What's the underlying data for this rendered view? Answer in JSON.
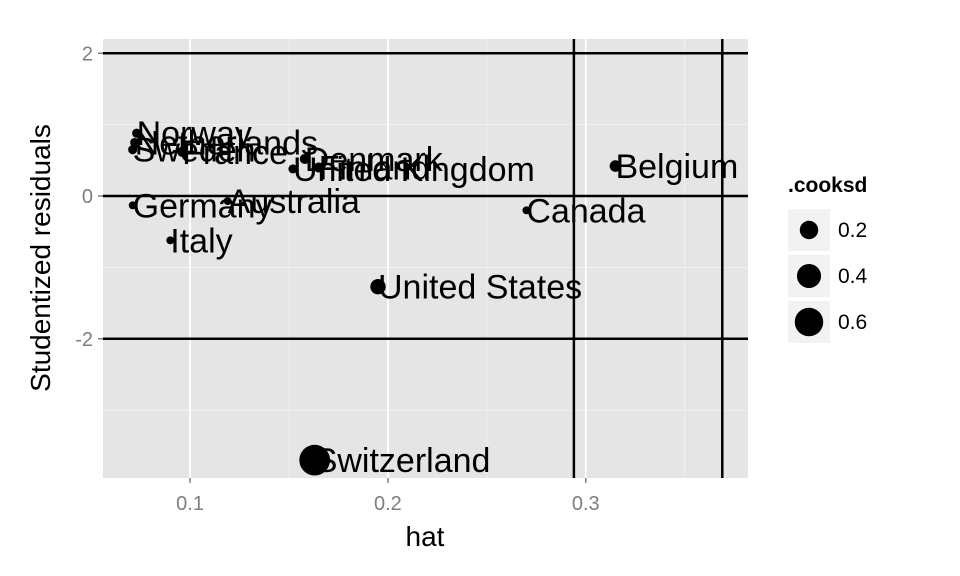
{
  "chart_data": {
    "type": "scatter",
    "title": "",
    "xlabel": "hat",
    "ylabel": "Studentized residuals",
    "xlim": [
      0.056,
      0.382
    ],
    "ylim": [
      -3.95,
      2.2
    ],
    "x_ticks": [
      {
        "value": 0.1,
        "label": "0.1"
      },
      {
        "value": 0.2,
        "label": "0.2"
      },
      {
        "value": 0.3,
        "label": "0.3"
      }
    ],
    "y_ticks": [
      {
        "value": 2,
        "label": "2"
      },
      {
        "value": 0,
        "label": "0"
      },
      {
        "value": -2,
        "label": "-2"
      }
    ],
    "grid": true,
    "panel_color": "#e5e5e5",
    "grid_color": "#ffffff",
    "point_color": "#000000",
    "reference_lines": {
      "horizontal": [
        2,
        0,
        -2
      ],
      "vertical": [
        0.294,
        0.369
      ]
    },
    "points": [
      {
        "label": "Norway",
        "x": 0.073,
        "y": 0.88,
        "cooksd": 0.02
      },
      {
        "label": "Netherlands",
        "x": 0.072,
        "y": 0.75,
        "cooksd": 0.02
      },
      {
        "label": "Sweden",
        "x": 0.071,
        "y": 0.65,
        "cooksd": 0.02
      },
      {
        "label": "France",
        "x": 0.096,
        "y": 0.62,
        "cooksd": 0.03
      },
      {
        "label": "Denmark",
        "x": 0.158,
        "y": 0.52,
        "cooksd": 0.03
      },
      {
        "label": "Finland",
        "x": 0.165,
        "y": 0.4,
        "cooksd": 0.03
      },
      {
        "label": "United Kingdom",
        "x": 0.152,
        "y": 0.38,
        "cooksd": 0.02
      },
      {
        "label": "Belgium",
        "x": 0.315,
        "y": 0.42,
        "cooksd": 0.05
      },
      {
        "label": "Australia",
        "x": 0.119,
        "y": -0.07,
        "cooksd": 0.01
      },
      {
        "label": "Germany",
        "x": 0.071,
        "y": -0.13,
        "cooksd": 0.01
      },
      {
        "label": "Canada",
        "x": 0.27,
        "y": -0.2,
        "cooksd": 0.01
      },
      {
        "label": "Italy",
        "x": 0.09,
        "y": -0.62,
        "cooksd": 0.01
      },
      {
        "label": "United States",
        "x": 0.195,
        "y": -1.27,
        "cooksd": 0.12
      },
      {
        "label": "Switzerland",
        "x": 0.163,
        "y": -3.7,
        "cooksd": 0.72
      }
    ],
    "legend": {
      "title": ".cooksd",
      "placement": "right",
      "entries": [
        {
          "value": 0.2,
          "label": "0.2"
        },
        {
          "value": 0.4,
          "label": "0.4"
        },
        {
          "value": 0.6,
          "label": "0.6"
        }
      ]
    }
  }
}
